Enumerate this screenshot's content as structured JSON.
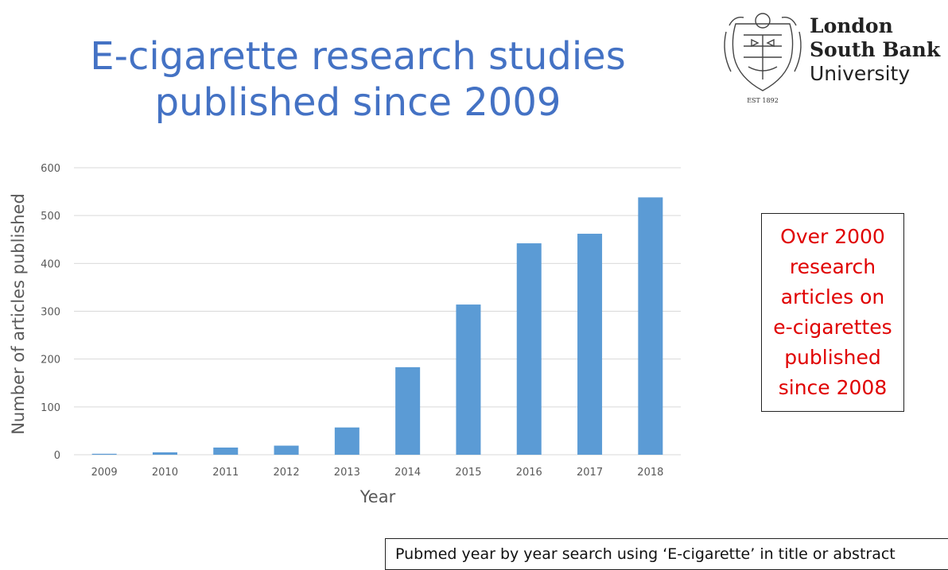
{
  "slide": {
    "title_lines": [
      "E-cigarette research studies",
      "published since 2009"
    ]
  },
  "logo": {
    "line1": "London",
    "line2": "South Bank",
    "line3": "University",
    "established": "EST 1892",
    "icon": "university-crest-icon"
  },
  "callout": {
    "text": "Over 2000\nresearch\narticles on\ne-cigarettes\npublished\nsince 2008",
    "color": "#e00000"
  },
  "source_note": {
    "text": "Pubmed year by year search using ‘E-cigarette’ in title or abstract"
  },
  "chart_data": {
    "type": "bar",
    "categories": [
      "2009",
      "2010",
      "2011",
      "2012",
      "2013",
      "2014",
      "2015",
      "2016",
      "2017",
      "2018"
    ],
    "values": [
      2,
      5,
      15,
      19,
      57,
      183,
      314,
      442,
      462,
      538
    ],
    "xlabel": "Year",
    "ylabel": "Number of articles published",
    "ylim": [
      0,
      600
    ],
    "yticks": [
      0,
      100,
      200,
      300,
      400,
      500,
      600
    ],
    "grid": true,
    "legend": "none",
    "bar_color": "#5b9bd5",
    "gridline_color": "#d9d9d9"
  }
}
